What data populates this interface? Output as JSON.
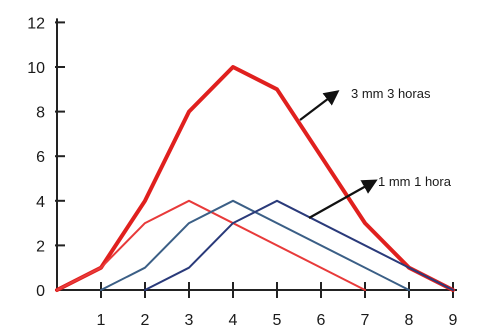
{
  "chart_data": {
    "type": "line",
    "title": "",
    "xlabel": "",
    "ylabel": "",
    "xlim": [
      0,
      9
    ],
    "ylim": [
      0,
      12
    ],
    "x_ticks": [
      "1",
      "2",
      "3",
      "4",
      "5",
      "6",
      "7",
      "8",
      "9"
    ],
    "y_ticks": [
      "0",
      "2",
      "4",
      "6",
      "8",
      "10",
      "12"
    ],
    "grid": false,
    "series": [
      {
        "name": "3 mm 3 horas",
        "color": "#e0201e",
        "stroke": "thick",
        "x": [
          0,
          1,
          2,
          3,
          4,
          5,
          6,
          7,
          8,
          9
        ],
        "y": [
          0,
          1,
          4,
          8,
          10,
          9,
          6,
          3,
          1,
          0
        ]
      },
      {
        "color": "#e83a3a",
        "stroke": "thin",
        "x": [
          0,
          1,
          2,
          3,
          7
        ],
        "y": [
          0,
          1,
          3,
          4,
          0
        ]
      },
      {
        "color": "#3b5f86",
        "stroke": "thin",
        "x": [
          1,
          2,
          3,
          4,
          8
        ],
        "y": [
          0,
          1,
          3,
          4,
          0
        ]
      },
      {
        "name": "1 mm 1 hora",
        "color": "#2a3a7a",
        "stroke": "thin",
        "x": [
          2,
          3,
          4,
          5,
          9
        ],
        "y": [
          0,
          1,
          3,
          4,
          0
        ]
      }
    ],
    "annotations": [
      {
        "text": "3 mm 3 horas",
        "points_to_series": 0
      },
      {
        "text": "1 mm 1 hora",
        "points_to_series": 3
      }
    ]
  }
}
